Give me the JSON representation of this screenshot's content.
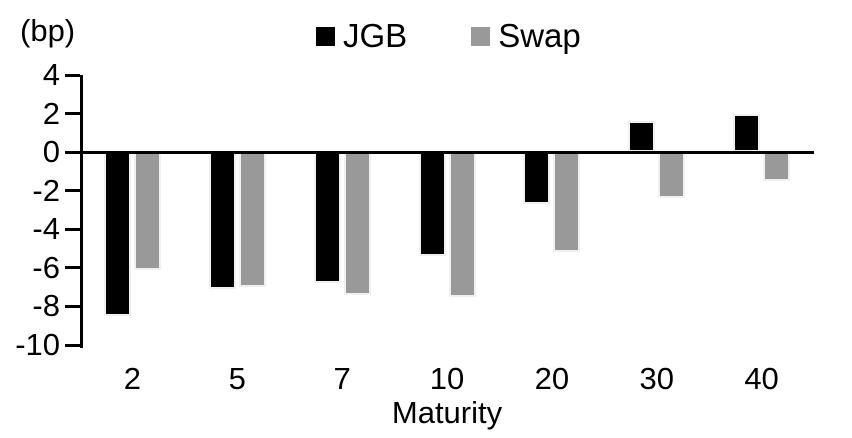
{
  "chart_data": {
    "type": "bar",
    "title": "",
    "categories": [
      "2",
      "5",
      "7",
      "10",
      "20",
      "30",
      "40"
    ],
    "series": [
      {
        "name": "JGB",
        "color": "#000000",
        "values": [
          -8.5,
          -7.1,
          -6.8,
          -5.4,
          -2.7,
          1.6,
          2.0
        ]
      },
      {
        "name": "Swap",
        "color": "#999999",
        "values": [
          -6.1,
          -7.0,
          -7.4,
          -7.5,
          -5.2,
          -2.4,
          -1.5
        ]
      }
    ],
    "xlabel": "Maturity",
    "ylabel": "(bp)",
    "ylim": [
      -10,
      4
    ],
    "y_ticks": [
      "4",
      "2",
      "0",
      "-2",
      "-4",
      "-6",
      "-8",
      "-10"
    ],
    "grid": false,
    "legend_position": "top-center",
    "bar_outline_color": "#f0f0f0",
    "axis_color": "#000000"
  }
}
